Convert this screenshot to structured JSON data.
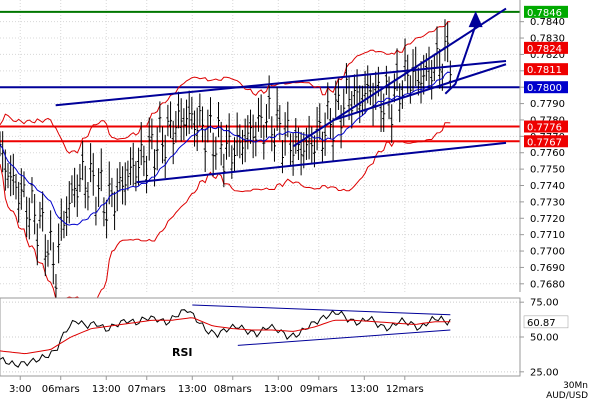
{
  "chart_data": [
    {
      "type": "line",
      "panel": "price",
      "instrument": "AUD/USD",
      "timeframe": "30Mn",
      "bar_style": "OHLC bars (black)",
      "overlays": [
        "Bollinger bands (red)",
        "moving average (blue)"
      ],
      "ylim": [
        0.7675,
        0.7852
      ],
      "y_ticks": [
        "0.7680",
        "0.7690",
        "0.7700",
        "0.7710",
        "0.7720",
        "0.7730",
        "0.7740",
        "0.7750",
        "0.7760",
        "0.7770",
        "0.7780",
        "0.7790",
        "0.7800",
        "0.7810",
        "0.7820",
        "0.7830",
        "0.7840"
      ],
      "x_ticks": [
        "3:00",
        "06mars",
        "13:00",
        "07mars",
        "13:00",
        "08mars",
        "13:00",
        "09mars",
        "13:00",
        "12mars"
      ],
      "x_range": [
        0,
        100
      ],
      "x_tick_positions": [
        4,
        12,
        21,
        29,
        38,
        46,
        55,
        63,
        72,
        80
      ],
      "close_path": [
        [
          0,
          0.776
        ],
        [
          2,
          0.7745
        ],
        [
          4,
          0.7735
        ],
        [
          6,
          0.7725
        ],
        [
          8,
          0.7715
        ],
        [
          10,
          0.77
        ],
        [
          11,
          0.7685
        ],
        [
          12,
          0.7712
        ],
        [
          14,
          0.7732
        ],
        [
          16,
          0.7745
        ],
        [
          18,
          0.7742
        ],
        [
          20,
          0.7735
        ],
        [
          21,
          0.7728
        ],
        [
          23,
          0.7735
        ],
        [
          25,
          0.7745
        ],
        [
          27,
          0.7752
        ],
        [
          29,
          0.7758
        ],
        [
          31,
          0.7765
        ],
        [
          33,
          0.777
        ],
        [
          35,
          0.7778
        ],
        [
          37,
          0.7782
        ],
        [
          39,
          0.7778
        ],
        [
          41,
          0.7772
        ],
        [
          43,
          0.7766
        ],
        [
          45,
          0.776
        ],
        [
          47,
          0.7764
        ],
        [
          49,
          0.777
        ],
        [
          51,
          0.7775
        ],
        [
          53,
          0.778
        ],
        [
          55,
          0.7773
        ],
        [
          57,
          0.7768
        ],
        [
          59,
          0.7762
        ],
        [
          61,
          0.7764
        ],
        [
          63,
          0.777
        ],
        [
          65,
          0.7778
        ],
        [
          67,
          0.7786
        ],
        [
          69,
          0.7795
        ],
        [
          71,
          0.7792
        ],
        [
          73,
          0.7798
        ],
        [
          75,
          0.7793
        ],
        [
          77,
          0.779
        ],
        [
          79,
          0.78
        ],
        [
          81,
          0.7808
        ],
        [
          83,
          0.7805
        ],
        [
          85,
          0.781
        ],
        [
          87,
          0.7815
        ],
        [
          88,
          0.7818
        ],
        [
          89,
          0.7822
        ]
      ],
      "horizontal_lines": [
        {
          "value": 0.7846,
          "color": "#007700"
        },
        {
          "value": 0.78,
          "color": "#000099"
        },
        {
          "value": 0.7776,
          "color": "#ee0000"
        },
        {
          "value": 0.7767,
          "color": "#ee0000"
        }
      ],
      "trend_lines": [
        {
          "from": [
            11,
            0.7789
          ],
          "to": [
            100,
            0.7816
          ],
          "color": "#000099"
        },
        {
          "from": [
            27,
            0.7742
          ],
          "to": [
            100,
            0.7766
          ],
          "color": "#000099"
        },
        {
          "from": [
            58,
            0.7764
          ],
          "to": [
            100,
            0.7848
          ],
          "color": "#000099"
        },
        {
          "from": [
            66,
            0.778
          ],
          "to": [
            100,
            0.7814
          ],
          "color": "#000099"
        }
      ],
      "projection_arrow": [
        [
          90,
          0.7802
        ],
        [
          94,
          0.7844
        ]
      ],
      "price_labels": [
        {
          "text": "0.7846",
          "bg": "#00aa00",
          "fg": "#ffffff"
        },
        {
          "text": "0.7824",
          "bg": "#ee0000",
          "fg": "#ffffff"
        },
        {
          "text": "0.7811",
          "bg": "#ee0000",
          "fg": "#ffffff"
        },
        {
          "text": "0.7800",
          "bg": "#0000cc",
          "fg": "#ffffff"
        },
        {
          "text": "0.7776",
          "bg": "#ee0000",
          "fg": "#ffffff"
        },
        {
          "text": "0.7767",
          "bg": "#ee0000",
          "fg": "#ffffff"
        }
      ]
    },
    {
      "type": "line",
      "panel": "oscillator",
      "indicator_label": "RSI",
      "ylim": [
        22,
        78
      ],
      "y_ticks": [
        "75.00",
        "50.00",
        "25.00"
      ],
      "current_value_label": "60.87",
      "series": [
        {
          "color": "#000000",
          "points": [
            [
              0,
              34
            ],
            [
              3,
              30
            ],
            [
              6,
              32
            ],
            [
              9,
              36
            ],
            [
              11,
              40
            ],
            [
              13,
              55
            ],
            [
              15,
              62
            ],
            [
              17,
              58
            ],
            [
              19,
              60
            ],
            [
              21,
              55
            ],
            [
              23,
              59
            ],
            [
              25,
              62
            ],
            [
              27,
              60
            ],
            [
              29,
              64
            ],
            [
              31,
              63
            ],
            [
              33,
              60
            ],
            [
              35,
              66
            ],
            [
              37,
              70
            ],
            [
              39,
              62
            ],
            [
              41,
              54
            ],
            [
              43,
              52
            ],
            [
              45,
              56
            ],
            [
              47,
              58
            ],
            [
              49,
              54
            ],
            [
              51,
              52
            ],
            [
              53,
              58
            ],
            [
              55,
              55
            ],
            [
              57,
              50
            ],
            [
              59,
              52
            ],
            [
              61,
              58
            ],
            [
              63,
              62
            ],
            [
              65,
              66
            ],
            [
              67,
              68
            ],
            [
              69,
              62
            ],
            [
              71,
              60
            ],
            [
              73,
              64
            ],
            [
              75,
              58
            ],
            [
              77,
              56
            ],
            [
              79,
              62
            ],
            [
              81,
              60
            ],
            [
              83,
              56
            ],
            [
              85,
              62
            ],
            [
              87,
              64
            ],
            [
              88,
              60
            ],
            [
              89,
              62
            ]
          ]
        },
        {
          "color": "#dd0000",
          "points": [
            [
              0,
              40
            ],
            [
              5,
              38
            ],
            [
              10,
              41
            ],
            [
              14,
              50
            ],
            [
              18,
              56
            ],
            [
              22,
              58
            ],
            [
              26,
              60
            ],
            [
              30,
              62
            ],
            [
              34,
              62
            ],
            [
              38,
              64
            ],
            [
              42,
              58
            ],
            [
              46,
              56
            ],
            [
              50,
              55
            ],
            [
              54,
              55
            ],
            [
              58,
              54
            ],
            [
              62,
              57
            ],
            [
              66,
              62
            ],
            [
              70,
              62
            ],
            [
              74,
              61
            ],
            [
              78,
              60
            ],
            [
              82,
              59
            ],
            [
              86,
              61
            ],
            [
              89,
              61
            ]
          ]
        }
      ],
      "trend_lines": [
        {
          "from": [
            38,
            73
          ],
          "to": [
            89,
            66
          ],
          "color": "#000099"
        },
        {
          "from": [
            47,
            44
          ],
          "to": [
            89,
            55
          ],
          "color": "#000099"
        }
      ]
    }
  ],
  "axis_caption": {
    "timeframe": "30Mn",
    "symbol": "AUD/USD"
  }
}
